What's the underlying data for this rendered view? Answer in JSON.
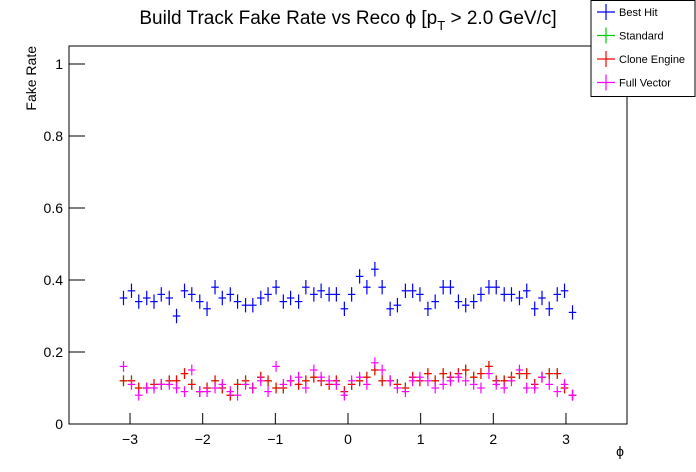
{
  "chart_data": {
    "type": "errorbar",
    "title": [
      "Build Track Fake Rate vs Reco ϕ [p",
      "T",
      " > 2.0 GeV/c]"
    ],
    "x_label": "ϕ",
    "y_label": "Fake Rate",
    "x": [
      -3.09,
      -2.98,
      -2.88,
      -2.77,
      -2.67,
      -2.57,
      -2.46,
      -2.36,
      -2.25,
      -2.15,
      -2.04,
      -1.94,
      -1.83,
      -1.73,
      -1.62,
      -1.52,
      -1.41,
      -1.31,
      -1.2,
      -1.1,
      -0.99,
      -0.89,
      -0.79,
      -0.68,
      -0.58,
      -0.47,
      -0.37,
      -0.26,
      -0.16,
      -0.05,
      0.05,
      0.16,
      0.26,
      0.37,
      0.47,
      0.58,
      0.68,
      0.79,
      0.89,
      0.99,
      1.1,
      1.2,
      1.31,
      1.41,
      1.52,
      1.62,
      1.73,
      1.83,
      1.94,
      2.04,
      2.15,
      2.25,
      2.36,
      2.46,
      2.57,
      2.67,
      2.77,
      2.88,
      2.98,
      3.09
    ],
    "xerr": 0.052,
    "series": [
      {
        "name": "Best Hit",
        "color": "#0000ff",
        "yerr": 0.02,
        "values": [
          0.35,
          0.37,
          0.34,
          0.35,
          0.34,
          0.36,
          0.35,
          0.3,
          0.37,
          0.36,
          0.34,
          0.32,
          0.38,
          0.35,
          0.36,
          0.34,
          0.33,
          0.33,
          0.35,
          0.36,
          0.38,
          0.34,
          0.35,
          0.34,
          0.38,
          0.36,
          0.37,
          0.36,
          0.36,
          0.32,
          0.36,
          0.41,
          0.38,
          0.43,
          0.38,
          0.32,
          0.33,
          0.37,
          0.37,
          0.36,
          0.32,
          0.34,
          0.38,
          0.38,
          0.34,
          0.33,
          0.34,
          0.36,
          0.38,
          0.38,
          0.36,
          0.36,
          0.35,
          0.37,
          0.32,
          0.35,
          0.32,
          0.36,
          0.37,
          0.31
        ]
      },
      {
        "name": "Standard",
        "color": "#00cc00",
        "yerr": 0.015,
        "values": [
          0.12,
          0.12,
          0.1,
          0.1,
          0.11,
          0.11,
          0.12,
          0.12,
          0.14,
          0.11,
          0.09,
          0.1,
          0.12,
          0.1,
          0.08,
          0.11,
          0.12,
          0.1,
          0.13,
          0.12,
          0.1,
          0.1,
          0.12,
          0.11,
          0.12,
          0.13,
          0.12,
          0.11,
          0.12,
          0.09,
          0.11,
          0.12,
          0.13,
          0.15,
          0.12,
          0.12,
          0.11,
          0.1,
          0.13,
          0.12,
          0.14,
          0.12,
          0.14,
          0.13,
          0.14,
          0.15,
          0.13,
          0.14,
          0.16,
          0.12,
          0.12,
          0.13,
          0.14,
          0.14,
          0.11,
          0.13,
          0.14,
          0.14,
          0.1,
          0.08
        ]
      },
      {
        "name": "Clone Engine",
        "color": "#ff0000",
        "yerr": 0.015,
        "values": [
          0.12,
          0.12,
          0.1,
          0.1,
          0.11,
          0.11,
          0.12,
          0.12,
          0.14,
          0.11,
          0.09,
          0.1,
          0.12,
          0.1,
          0.08,
          0.11,
          0.12,
          0.1,
          0.13,
          0.12,
          0.1,
          0.1,
          0.12,
          0.11,
          0.12,
          0.13,
          0.12,
          0.11,
          0.12,
          0.09,
          0.11,
          0.12,
          0.13,
          0.15,
          0.12,
          0.12,
          0.11,
          0.1,
          0.13,
          0.12,
          0.14,
          0.12,
          0.14,
          0.13,
          0.14,
          0.15,
          0.13,
          0.14,
          0.16,
          0.12,
          0.12,
          0.13,
          0.14,
          0.14,
          0.11,
          0.13,
          0.14,
          0.14,
          0.1,
          0.08
        ]
      },
      {
        "name": "Full Vector",
        "color": "#ff00ff",
        "yerr": 0.015,
        "values": [
          0.16,
          0.11,
          0.08,
          0.1,
          0.1,
          0.11,
          0.11,
          0.1,
          0.09,
          0.15,
          0.09,
          0.09,
          0.1,
          0.11,
          0.09,
          0.08,
          0.11,
          0.1,
          0.12,
          0.09,
          0.16,
          0.11,
          0.12,
          0.13,
          0.1,
          0.15,
          0.13,
          0.12,
          0.11,
          0.08,
          0.12,
          0.13,
          0.11,
          0.17,
          0.15,
          0.12,
          0.1,
          0.09,
          0.12,
          0.13,
          0.12,
          0.1,
          0.11,
          0.12,
          0.13,
          0.12,
          0.11,
          0.1,
          0.14,
          0.11,
          0.1,
          0.12,
          0.15,
          0.1,
          0.1,
          0.13,
          0.11,
          0.09,
          0.11,
          0.08
        ]
      }
    ],
    "xlim": [
      -3.84,
      3.84
    ],
    "ylim": [
      0,
      1.05
    ],
    "xticks": [
      {
        "value": -3,
        "label": "−3"
      },
      {
        "value": -2,
        "label": "−2"
      },
      {
        "value": -1,
        "label": "−1"
      },
      0,
      1,
      2,
      3
    ],
    "yticks": [
      0,
      0.2,
      0.4,
      0.6,
      0.8,
      1
    ],
    "grid": false,
    "legend": "top-right"
  }
}
